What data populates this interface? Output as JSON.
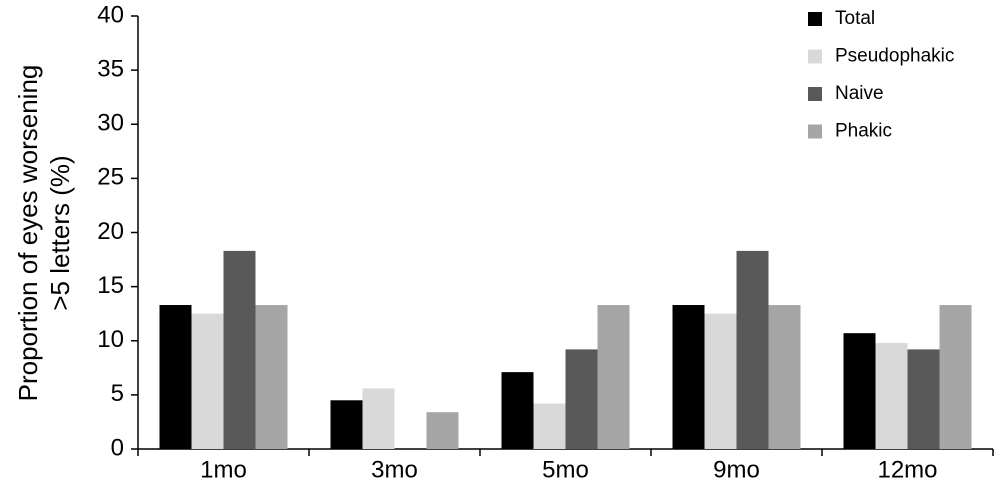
{
  "chart_data": {
    "type": "bar",
    "ylabel": [
      "Proportion of eyes worsening",
      ">5 letters (%)"
    ],
    "categories": [
      "1mo",
      "3mo",
      "5mo",
      "9mo",
      "12mo"
    ],
    "series": [
      {
        "name": "Total",
        "color": "#000000",
        "values": [
          13.3,
          4.5,
          7.1,
          13.3,
          10.7
        ]
      },
      {
        "name": "Pseudophakic",
        "color": "#d9d9d9",
        "values": [
          12.5,
          5.6,
          4.2,
          12.5,
          9.8
        ]
      },
      {
        "name": "Naive",
        "color": "#595959",
        "values": [
          18.3,
          0,
          9.2,
          18.3,
          9.2
        ]
      },
      {
        "name": "Phakic",
        "color": "#a6a6a6",
        "values": [
          13.3,
          3.4,
          13.3,
          13.3,
          13.3
        ]
      }
    ],
    "ylim": [
      0,
      40
    ],
    "yticks": [
      0,
      5,
      10,
      15,
      20,
      25,
      30,
      35,
      40
    ],
    "grid": false,
    "legend": "top-right"
  }
}
